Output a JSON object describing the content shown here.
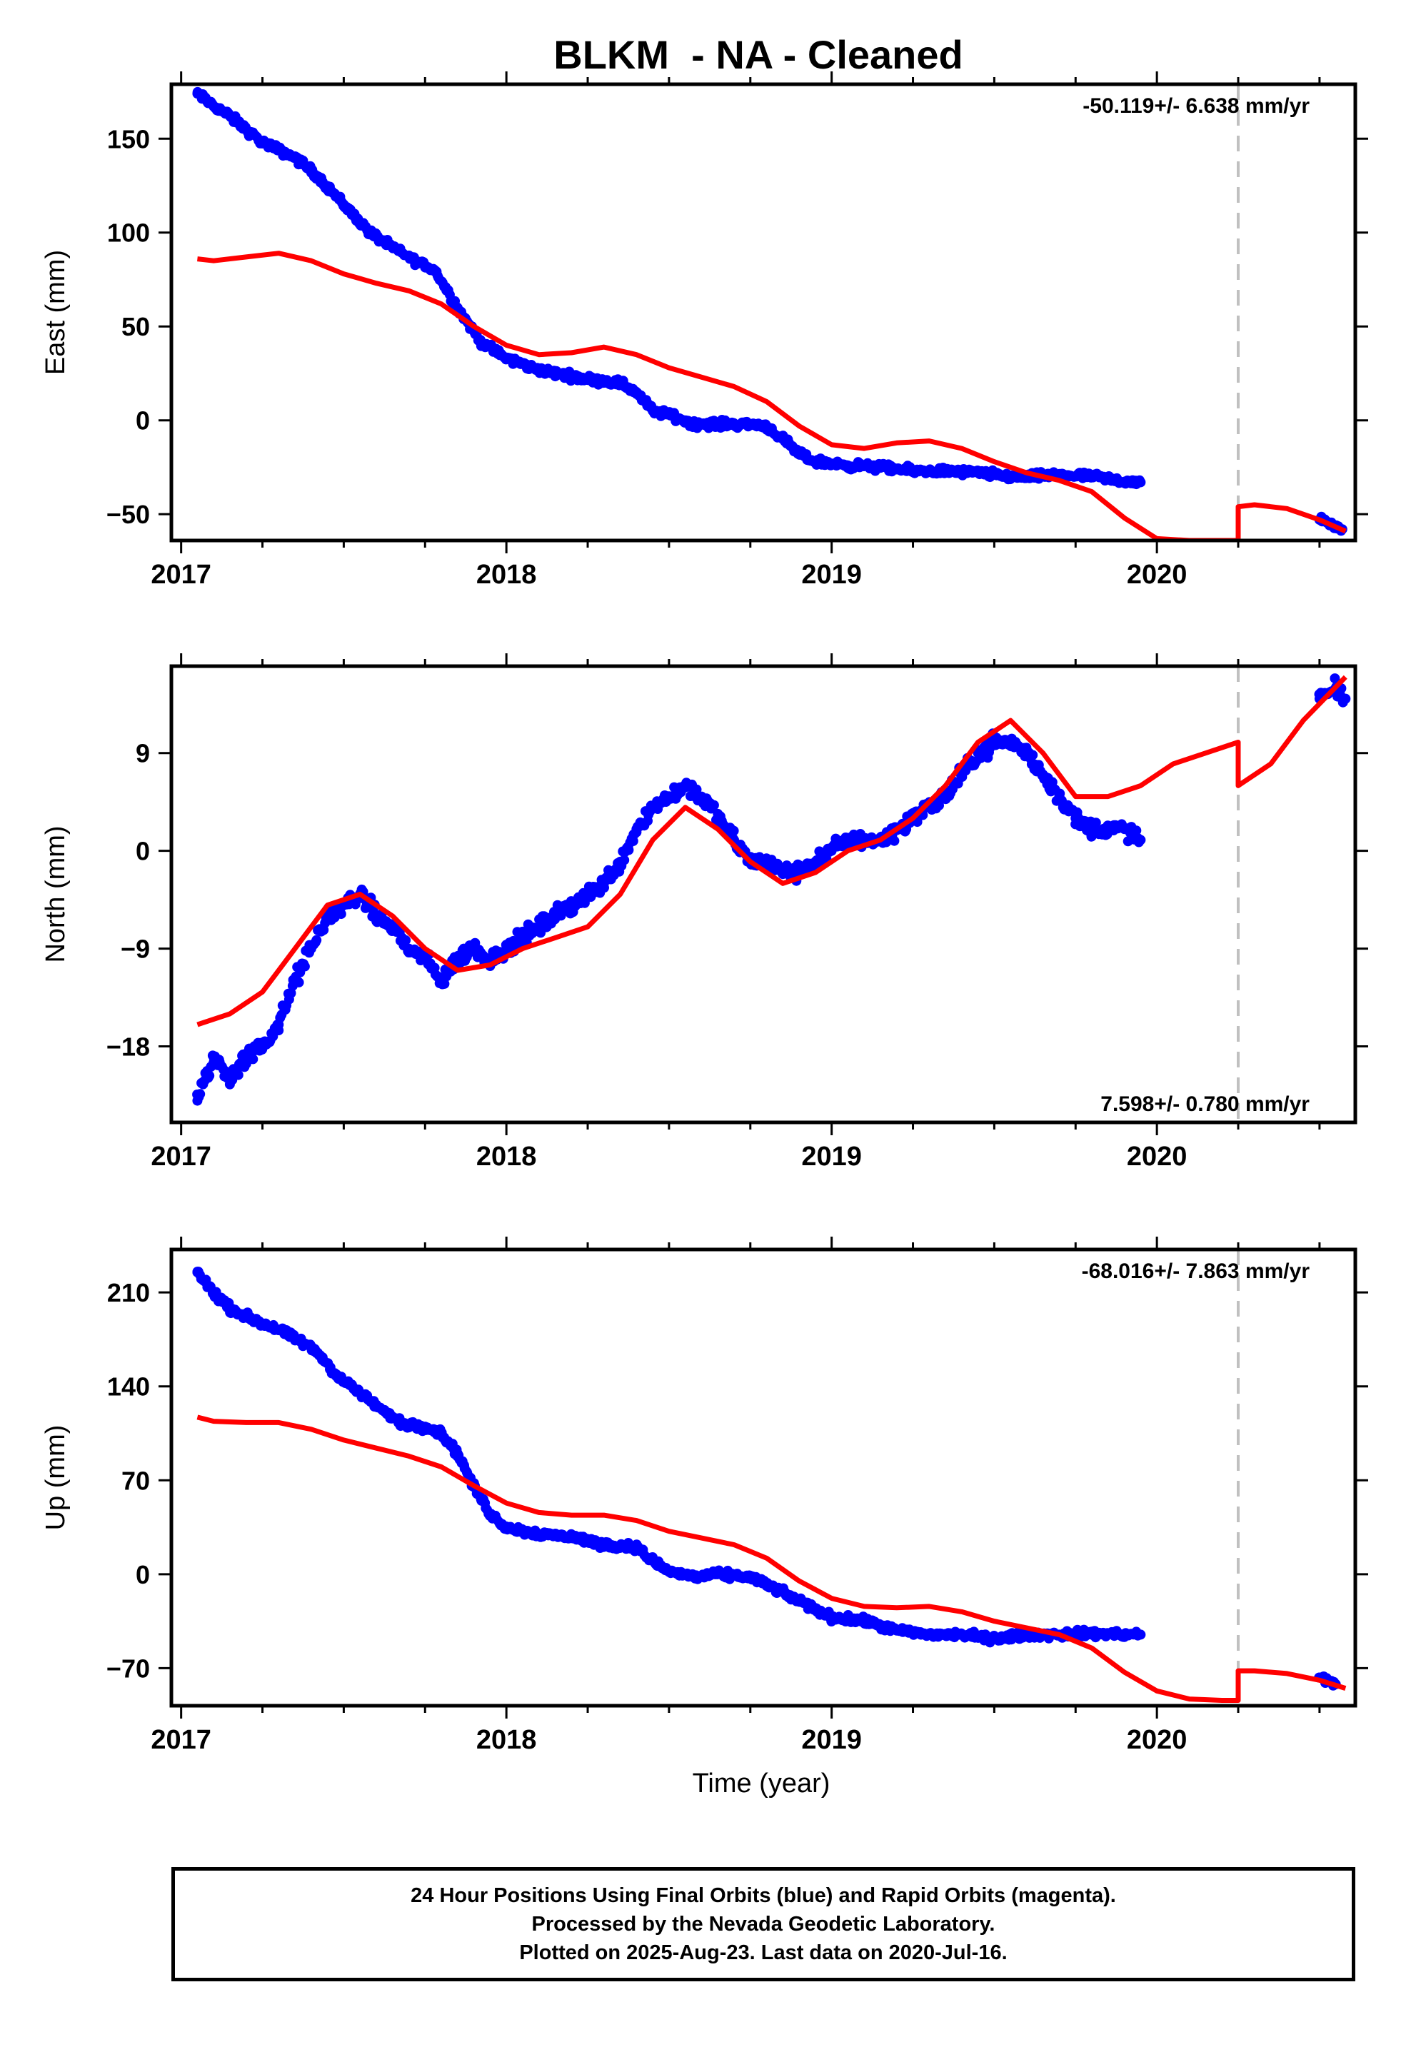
{
  "title": "BLKM  - NA - Cleaned",
  "footer": {
    "line1": "24 Hour Positions Using Final Orbits (blue) and Rapid Orbits (magenta).",
    "line2": "Processed by the Nevada Geodetic Laboratory.",
    "line3": "Plotted on 2025-Aug-23. Last data on 2020-Jul-16."
  },
  "colors": {
    "data": "#0000ff",
    "model": "#ff0000",
    "event_line": "#c0c0c0",
    "frame": "#000000"
  },
  "chart_data": [
    {
      "type": "scatter",
      "name": "east",
      "title": "",
      "ylabel": "East (mm)",
      "xlabel": "",
      "xlim": [
        2016.97,
        2020.61
      ],
      "ylim": [
        -64,
        179
      ],
      "x_ticks": [
        2017,
        2018,
        2019,
        2020
      ],
      "y_ticks": [
        150,
        100,
        50,
        0,
        -50
      ],
      "y_tick_labels": [
        "150",
        "100",
        "50",
        "0",
        "−50"
      ],
      "rate_label": "-50.119+/- 6.638 mm/yr",
      "rate_label_position": "top-right",
      "event_line_x": 2020.25,
      "observations": [
        [
          2017.05,
          174
        ],
        [
          2017.08,
          170
        ],
        [
          2017.15,
          162
        ],
        [
          2017.25,
          148
        ],
        [
          2017.3,
          144
        ],
        [
          2017.35,
          140
        ],
        [
          2017.42,
          130
        ],
        [
          2017.5,
          115
        ],
        [
          2017.58,
          100
        ],
        [
          2017.65,
          92
        ],
        [
          2017.72,
          85
        ],
        [
          2017.78,
          80
        ],
        [
          2017.85,
          60
        ],
        [
          2017.92,
          42
        ],
        [
          2018.0,
          33
        ],
        [
          2018.08,
          28
        ],
        [
          2018.15,
          25
        ],
        [
          2018.25,
          22
        ],
        [
          2018.35,
          20
        ],
        [
          2018.4,
          15
        ],
        [
          2018.45,
          5
        ],
        [
          2018.5,
          3
        ],
        [
          2018.58,
          -2
        ],
        [
          2018.65,
          -2
        ],
        [
          2018.75,
          -2
        ],
        [
          2018.8,
          -3
        ],
        [
          2018.85,
          -10
        ],
        [
          2018.9,
          -18
        ],
        [
          2018.95,
          -22
        ],
        [
          2019.05,
          -24
        ],
        [
          2019.15,
          -25
        ],
        [
          2019.25,
          -27
        ],
        [
          2019.35,
          -27
        ],
        [
          2019.45,
          -28
        ],
        [
          2019.55,
          -30
        ],
        [
          2019.62,
          -30
        ],
        [
          2019.7,
          -29
        ],
        [
          2019.8,
          -30
        ],
        [
          2019.88,
          -32
        ],
        [
          2019.95,
          -33
        ],
        [
          2020.5,
          -53
        ],
        [
          2020.53,
          -55
        ],
        [
          2020.57,
          -58
        ]
      ],
      "model": [
        [
          2017.05,
          86
        ],
        [
          2017.1,
          85
        ],
        [
          2017.2,
          87
        ],
        [
          2017.3,
          89
        ],
        [
          2017.4,
          85
        ],
        [
          2017.5,
          78
        ],
        [
          2017.6,
          73
        ],
        [
          2017.7,
          69
        ],
        [
          2017.8,
          62
        ],
        [
          2017.9,
          50
        ],
        [
          2018.0,
          40
        ],
        [
          2018.1,
          35
        ],
        [
          2018.2,
          36
        ],
        [
          2018.3,
          39
        ],
        [
          2018.4,
          35
        ],
        [
          2018.5,
          28
        ],
        [
          2018.6,
          23
        ],
        [
          2018.7,
          18
        ],
        [
          2018.8,
          10
        ],
        [
          2018.9,
          -3
        ],
        [
          2019.0,
          -13
        ],
        [
          2019.1,
          -15
        ],
        [
          2019.2,
          -12
        ],
        [
          2019.3,
          -11
        ],
        [
          2019.4,
          -15
        ],
        [
          2019.5,
          -22
        ],
        [
          2019.6,
          -28
        ],
        [
          2019.7,
          -32
        ],
        [
          2019.8,
          -38
        ],
        [
          2019.9,
          -52
        ],
        [
          2020.0,
          -63
        ],
        [
          2020.1,
          -64
        ],
        [
          2020.2,
          -64
        ],
        [
          2020.25,
          -64
        ],
        [
          2020.25,
          -46
        ],
        [
          2020.3,
          -45
        ],
        [
          2020.4,
          -47
        ],
        [
          2020.5,
          -53
        ],
        [
          2020.58,
          -59
        ]
      ]
    },
    {
      "type": "scatter",
      "name": "north",
      "title": "",
      "ylabel": "North (mm)",
      "xlabel": "",
      "xlim": [
        2016.97,
        2020.61
      ],
      "ylim": [
        -25,
        17
      ],
      "x_ticks": [
        2017,
        2018,
        2019,
        2020
      ],
      "y_ticks": [
        9,
        0,
        -9,
        -18
      ],
      "y_tick_labels": [
        "9",
        "0",
        "−9",
        "−18"
      ],
      "rate_label": "7.598+/- 0.780 mm/yr",
      "rate_label_position": "bottom-right",
      "event_line_x": 2020.25,
      "observations": [
        [
          2017.05,
          -23
        ],
        [
          2017.1,
          -19
        ],
        [
          2017.15,
          -21
        ],
        [
          2017.2,
          -19
        ],
        [
          2017.25,
          -18
        ],
        [
          2017.3,
          -16
        ],
        [
          2017.35,
          -12
        ],
        [
          2017.4,
          -9
        ],
        [
          2017.45,
          -6
        ],
        [
          2017.5,
          -5
        ],
        [
          2017.55,
          -4
        ],
        [
          2017.6,
          -6
        ],
        [
          2017.65,
          -7
        ],
        [
          2017.7,
          -9
        ],
        [
          2017.75,
          -10
        ],
        [
          2017.8,
          -12
        ],
        [
          2017.85,
          -10
        ],
        [
          2017.9,
          -9
        ],
        [
          2017.95,
          -10
        ],
        [
          2018.0,
          -9
        ],
        [
          2018.05,
          -8
        ],
        [
          2018.1,
          -7
        ],
        [
          2018.15,
          -6
        ],
        [
          2018.2,
          -5
        ],
        [
          2018.25,
          -4
        ],
        [
          2018.3,
          -3
        ],
        [
          2018.35,
          -1
        ],
        [
          2018.4,
          2
        ],
        [
          2018.45,
          4
        ],
        [
          2018.5,
          5
        ],
        [
          2018.55,
          6
        ],
        [
          2018.6,
          5
        ],
        [
          2018.65,
          3
        ],
        [
          2018.7,
          1
        ],
        [
          2018.75,
          -1
        ],
        [
          2018.8,
          -1
        ],
        [
          2018.85,
          -2
        ],
        [
          2018.9,
          -2
        ],
        [
          2018.95,
          -1
        ],
        [
          2019.0,
          0
        ],
        [
          2019.05,
          1
        ],
        [
          2019.1,
          1
        ],
        [
          2019.15,
          1
        ],
        [
          2019.2,
          2
        ],
        [
          2019.25,
          3
        ],
        [
          2019.3,
          4
        ],
        [
          2019.35,
          5
        ],
        [
          2019.4,
          7
        ],
        [
          2019.45,
          9
        ],
        [
          2019.5,
          10
        ],
        [
          2019.55,
          10
        ],
        [
          2019.6,
          9
        ],
        [
          2019.65,
          7
        ],
        [
          2019.7,
          5
        ],
        [
          2019.75,
          3
        ],
        [
          2019.8,
          2
        ],
        [
          2019.85,
          2
        ],
        [
          2019.9,
          2
        ],
        [
          2019.95,
          1
        ],
        [
          2020.5,
          14
        ],
        [
          2020.55,
          15
        ],
        [
          2020.58,
          14
        ]
      ],
      "model": [
        [
          2017.05,
          -16
        ],
        [
          2017.15,
          -15
        ],
        [
          2017.25,
          -13
        ],
        [
          2017.35,
          -9
        ],
        [
          2017.45,
          -5
        ],
        [
          2017.55,
          -4
        ],
        [
          2017.65,
          -6
        ],
        [
          2017.75,
          -9
        ],
        [
          2017.85,
          -11
        ],
        [
          2017.95,
          -10.5
        ],
        [
          2018.05,
          -9
        ],
        [
          2018.15,
          -8
        ],
        [
          2018.25,
          -7
        ],
        [
          2018.35,
          -4
        ],
        [
          2018.45,
          1
        ],
        [
          2018.55,
          4
        ],
        [
          2018.65,
          2
        ],
        [
          2018.75,
          -1
        ],
        [
          2018.85,
          -3
        ],
        [
          2018.95,
          -2
        ],
        [
          2019.05,
          0
        ],
        [
          2019.15,
          1
        ],
        [
          2019.25,
          3
        ],
        [
          2019.35,
          6
        ],
        [
          2019.45,
          10
        ],
        [
          2019.55,
          12
        ],
        [
          2019.65,
          9
        ],
        [
          2019.75,
          5
        ],
        [
          2019.85,
          5
        ],
        [
          2019.95,
          6
        ],
        [
          2020.05,
          8
        ],
        [
          2020.15,
          9
        ],
        [
          2020.25,
          10
        ],
        [
          2020.25,
          6
        ],
        [
          2020.35,
          8
        ],
        [
          2020.45,
          12
        ],
        [
          2020.58,
          16
        ]
      ]
    },
    {
      "type": "scatter",
      "name": "up",
      "title": "",
      "ylabel": "Up (mm)",
      "xlabel": "Time (year)",
      "xlim": [
        2016.97,
        2020.61
      ],
      "ylim": [
        -98,
        242
      ],
      "x_ticks": [
        2017,
        2018,
        2019,
        2020
      ],
      "y_ticks": [
        210,
        140,
        70,
        0,
        -70
      ],
      "y_tick_labels": [
        "210",
        "140",
        "70",
        "0",
        "−70"
      ],
      "rate_label": "-68.016+/- 7.863 mm/yr",
      "rate_label_position": "top-right",
      "event_line_x": 2020.25,
      "observations": [
        [
          2017.05,
          225
        ],
        [
          2017.1,
          210
        ],
        [
          2017.15,
          198
        ],
        [
          2017.22,
          190
        ],
        [
          2017.3,
          182
        ],
        [
          2017.37,
          173
        ],
        [
          2017.42,
          165
        ],
        [
          2017.48,
          148
        ],
        [
          2017.55,
          135
        ],
        [
          2017.62,
          122
        ],
        [
          2017.68,
          112
        ],
        [
          2017.75,
          110
        ],
        [
          2017.8,
          105
        ],
        [
          2017.85,
          90
        ],
        [
          2017.9,
          65
        ],
        [
          2017.95,
          45
        ],
        [
          2018.0,
          35
        ],
        [
          2018.1,
          30
        ],
        [
          2018.2,
          28
        ],
        [
          2018.3,
          22
        ],
        [
          2018.4,
          20
        ],
        [
          2018.45,
          10
        ],
        [
          2018.5,
          2
        ],
        [
          2018.58,
          -2
        ],
        [
          2018.65,
          0
        ],
        [
          2018.75,
          -2
        ],
        [
          2018.82,
          -10
        ],
        [
          2018.9,
          -20
        ],
        [
          2019.0,
          -32
        ],
        [
          2019.1,
          -35
        ],
        [
          2019.2,
          -42
        ],
        [
          2019.3,
          -45
        ],
        [
          2019.4,
          -45
        ],
        [
          2019.5,
          -48
        ],
        [
          2019.6,
          -45
        ],
        [
          2019.7,
          -45
        ],
        [
          2019.8,
          -44
        ],
        [
          2019.9,
          -45
        ],
        [
          2019.95,
          -45
        ],
        [
          2020.5,
          -77
        ],
        [
          2020.55,
          -82
        ]
      ],
      "model": [
        [
          2017.05,
          117
        ],
        [
          2017.1,
          114
        ],
        [
          2017.2,
          113
        ],
        [
          2017.3,
          113
        ],
        [
          2017.4,
          108
        ],
        [
          2017.5,
          100
        ],
        [
          2017.6,
          94
        ],
        [
          2017.7,
          88
        ],
        [
          2017.8,
          80
        ],
        [
          2017.9,
          66
        ],
        [
          2018.0,
          53
        ],
        [
          2018.1,
          46
        ],
        [
          2018.2,
          44
        ],
        [
          2018.3,
          44
        ],
        [
          2018.4,
          40
        ],
        [
          2018.5,
          32
        ],
        [
          2018.6,
          27
        ],
        [
          2018.7,
          22
        ],
        [
          2018.8,
          12
        ],
        [
          2018.9,
          -5
        ],
        [
          2019.0,
          -18
        ],
        [
          2019.1,
          -24
        ],
        [
          2019.2,
          -25
        ],
        [
          2019.3,
          -24
        ],
        [
          2019.4,
          -28
        ],
        [
          2019.5,
          -35
        ],
        [
          2019.6,
          -40
        ],
        [
          2019.7,
          -45
        ],
        [
          2019.8,
          -55
        ],
        [
          2019.9,
          -73
        ],
        [
          2020.0,
          -87
        ],
        [
          2020.1,
          -93
        ],
        [
          2020.2,
          -94
        ],
        [
          2020.25,
          -94
        ],
        [
          2020.25,
          -72
        ],
        [
          2020.3,
          -72
        ],
        [
          2020.4,
          -74
        ],
        [
          2020.5,
          -79
        ],
        [
          2020.58,
          -85
        ]
      ]
    }
  ]
}
